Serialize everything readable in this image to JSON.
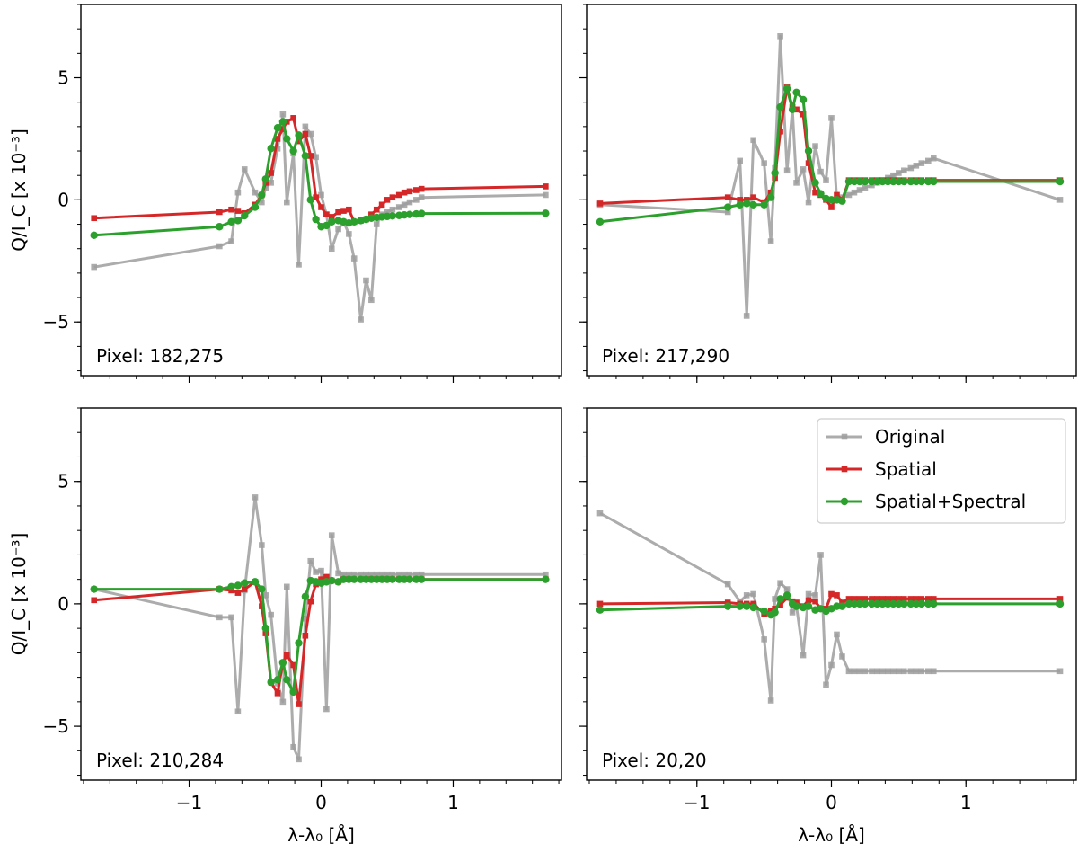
{
  "chart_data": {
    "type": "line",
    "xlabel": "λ-λ₀ [Å]",
    "ylabel": "Q/I_C [x 10⁻³]",
    "xlim": [
      -1.82,
      1.82
    ],
    "ylim": [
      -7.2,
      8.0
    ],
    "xticks": [
      -1,
      0,
      1
    ],
    "xtick_labels": [
      "−1",
      "0",
      "1"
    ],
    "yticks": [
      -5,
      0,
      5
    ],
    "ytick_labels": [
      "−5",
      "0",
      "5"
    ],
    "legend": {
      "placement": "top-right of bottom-right panel",
      "entries": [
        "Original",
        "Spatial",
        "Spatial+Spectral"
      ]
    },
    "series_styles": [
      {
        "name": "Original",
        "color": "#9e9e9e",
        "marker": "square"
      },
      {
        "name": "Spatial",
        "color": "#d62728",
        "marker": "square"
      },
      {
        "name": "Spatial+Spectral",
        "color": "#2ca02c",
        "marker": "circle"
      }
    ],
    "x": [
      -1.72,
      -0.77,
      -0.68,
      -0.63,
      -0.58,
      -0.5,
      -0.45,
      -0.42,
      -0.38,
      -0.33,
      -0.29,
      -0.26,
      -0.21,
      -0.17,
      -0.12,
      -0.08,
      -0.04,
      0.0,
      0.04,
      0.08,
      0.13,
      0.17,
      0.21,
      0.25,
      0.3,
      0.34,
      0.38,
      0.42,
      0.46,
      0.5,
      0.54,
      0.59,
      0.63,
      0.67,
      0.72,
      0.76,
      1.7
    ],
    "panels": [
      {
        "label": "Pixel: 182,275",
        "series": [
          {
            "name": "Original",
            "values": [
              -2.75,
              -1.9,
              -1.7,
              0.3,
              1.25,
              0.3,
              -0.1,
              0.5,
              0.7,
              2.1,
              3.5,
              -0.1,
              1.9,
              -2.65,
              3.0,
              2.7,
              1.75,
              0.2,
              -0.6,
              -2.0,
              -1.2,
              -0.9,
              -1.4,
              -2.4,
              -4.9,
              -3.3,
              -4.1,
              -1.0,
              -0.6,
              -0.5,
              -0.4,
              -0.3,
              -0.2,
              -0.1,
              0.0,
              0.1,
              0.2
            ]
          },
          {
            "name": "Spatial",
            "values": [
              -0.75,
              -0.5,
              -0.4,
              -0.45,
              -0.55,
              -0.2,
              0.2,
              0.7,
              1.1,
              2.5,
              2.9,
              3.2,
              3.35,
              2.4,
              2.7,
              1.8,
              0.1,
              -0.3,
              -0.6,
              -0.7,
              -0.5,
              -0.45,
              -0.4,
              -0.9,
              -0.85,
              -0.8,
              -0.6,
              -0.4,
              -0.2,
              0.0,
              0.1,
              0.2,
              0.3,
              0.35,
              0.4,
              0.45,
              0.55
            ]
          },
          {
            "name": "Spatial+Spectral",
            "values": [
              -1.45,
              -1.1,
              -0.9,
              -0.85,
              -0.65,
              -0.3,
              0.2,
              0.85,
              2.1,
              2.95,
              3.2,
              2.5,
              2.0,
              2.65,
              1.8,
              0.0,
              -0.8,
              -1.1,
              -1.05,
              -0.9,
              -0.85,
              -0.9,
              -0.95,
              -0.9,
              -0.85,
              -0.8,
              -0.75,
              -0.72,
              -0.7,
              -0.68,
              -0.66,
              -0.64,
              -0.62,
              -0.6,
              -0.58,
              -0.56,
              -0.55
            ]
          }
        ]
      },
      {
        "label": "Pixel: 217,290",
        "series": [
          {
            "name": "Original",
            "values": [
              -0.2,
              -0.5,
              1.6,
              -4.75,
              2.45,
              1.5,
              -1.7,
              1.3,
              6.7,
              1.2,
              3.7,
              0.7,
              1.25,
              -0.1,
              2.2,
              1.15,
              0.8,
              3.35,
              0.0,
              0.1,
              0.2,
              0.3,
              0.4,
              0.5,
              0.6,
              0.7,
              0.8,
              0.9,
              1.0,
              1.1,
              1.2,
              1.3,
              1.4,
              1.5,
              1.6,
              1.7,
              0.0
            ]
          },
          {
            "name": "Spatial",
            "values": [
              -0.15,
              0.1,
              0.0,
              0.0,
              0.1,
              -0.1,
              0.3,
              0.9,
              2.8,
              4.6,
              3.8,
              3.7,
              3.5,
              1.5,
              0.3,
              0.2,
              0.0,
              -0.3,
              0.2,
              0.0,
              0.8,
              0.8,
              0.8,
              0.8,
              0.8,
              0.8,
              0.8,
              0.8,
              0.8,
              0.8,
              0.8,
              0.8,
              0.8,
              0.8,
              0.8,
              0.8,
              0.8
            ]
          },
          {
            "name": "Spatial+Spectral",
            "values": [
              -0.9,
              -0.3,
              -0.2,
              -0.15,
              -0.2,
              -0.2,
              0.1,
              1.1,
              3.8,
              4.55,
              3.7,
              4.4,
              4.1,
              2.0,
              0.7,
              0.25,
              0.05,
              0.0,
              0.0,
              -0.05,
              0.75,
              0.75,
              0.75,
              0.75,
              0.75,
              0.75,
              0.75,
              0.75,
              0.75,
              0.75,
              0.75,
              0.75,
              0.75,
              0.75,
              0.75,
              0.75,
              0.75
            ]
          }
        ]
      },
      {
        "label": "Pixel: 210,284",
        "series": [
          {
            "name": "Original",
            "values": [
              0.6,
              -0.55,
              -0.55,
              -4.4,
              0.55,
              4.35,
              2.4,
              0.35,
              -0.45,
              -3.25,
              -4.0,
              0.7,
              -5.85,
              -6.35,
              -0.6,
              1.75,
              1.3,
              1.35,
              -4.3,
              2.8,
              1.25,
              1.2,
              1.2,
              1.2,
              1.2,
              1.2,
              1.2,
              1.2,
              1.2,
              1.2,
              1.2,
              1.2,
              1.2,
              1.2,
              1.2,
              1.2,
              1.2
            ]
          },
          {
            "name": "Spatial",
            "values": [
              0.15,
              0.6,
              0.55,
              0.45,
              0.6,
              0.9,
              -0.1,
              -1.2,
              -3.2,
              -3.65,
              -2.4,
              -2.1,
              -2.5,
              -4.1,
              -1.3,
              0.1,
              0.8,
              1.0,
              1.1,
              0.95,
              0.9,
              1.0,
              1.0,
              1.0,
              1.0,
              1.0,
              1.0,
              1.0,
              1.0,
              1.0,
              1.0,
              1.0,
              1.0,
              1.0,
              1.0,
              1.0,
              1.0
            ]
          },
          {
            "name": "Spatial+Spectral",
            "values": [
              0.6,
              0.6,
              0.7,
              0.75,
              0.85,
              0.9,
              0.6,
              -1.0,
              -3.2,
              -3.1,
              -2.4,
              -3.1,
              -3.6,
              -1.6,
              0.3,
              0.95,
              0.9,
              0.85,
              0.9,
              0.95,
              0.9,
              1.0,
              1.0,
              1.0,
              1.0,
              1.0,
              1.0,
              1.0,
              1.0,
              1.0,
              1.0,
              1.0,
              1.0,
              1.0,
              1.0,
              1.0,
              1.0
            ]
          }
        ]
      },
      {
        "label": "Pixel: 20,20",
        "series": [
          {
            "name": "Original",
            "values": [
              3.7,
              0.8,
              0.1,
              0.35,
              0.4,
              -1.45,
              -3.95,
              0.2,
              0.85,
              0.6,
              -0.35,
              -0.1,
              -2.1,
              0.4,
              0.35,
              2.0,
              -3.3,
              -2.5,
              -1.25,
              -2.15,
              -2.75,
              -2.75,
              -2.75,
              -2.75,
              -2.75,
              -2.75,
              -2.75,
              -2.75,
              -2.75,
              -2.75,
              -2.75,
              -2.75,
              -2.75,
              -2.75,
              -2.75,
              -2.75,
              -2.75
            ]
          },
          {
            "name": "Spatial",
            "values": [
              0.0,
              0.05,
              0.0,
              0.0,
              0.0,
              -0.4,
              -0.3,
              -0.2,
              -0.05,
              0.25,
              0.1,
              0.05,
              -0.1,
              0.15,
              0.1,
              -0.2,
              -0.2,
              0.4,
              0.35,
              0.05,
              0.2,
              0.2,
              0.2,
              0.2,
              0.2,
              0.2,
              0.2,
              0.2,
              0.2,
              0.2,
              0.2,
              0.2,
              0.2,
              0.2,
              0.2,
              0.2,
              0.2
            ]
          },
          {
            "name": "Spatial+Spectral",
            "values": [
              -0.25,
              -0.1,
              -0.1,
              -0.1,
              -0.15,
              -0.3,
              -0.45,
              -0.35,
              0.2,
              0.35,
              0.0,
              -0.1,
              -0.15,
              -0.1,
              -0.25,
              -0.2,
              -0.3,
              -0.2,
              -0.1,
              -0.1,
              0.0,
              0.0,
              0.0,
              0.0,
              0.0,
              0.0,
              0.0,
              0.0,
              0.0,
              0.0,
              0.0,
              0.0,
              0.0,
              0.0,
              0.0,
              0.0,
              0.0
            ]
          }
        ]
      }
    ]
  }
}
